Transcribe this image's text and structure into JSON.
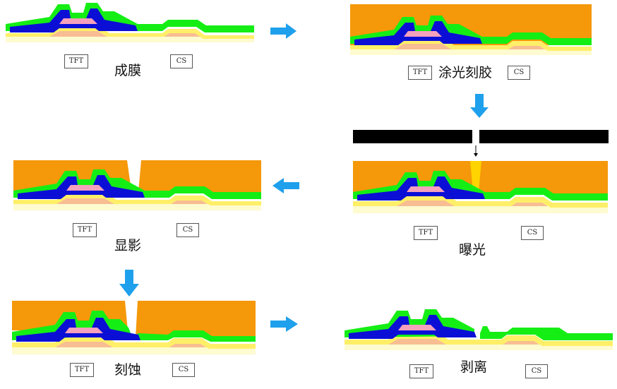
{
  "colors": {
    "resist": "#f5980a",
    "green": "#15ee15",
    "blue": "#0b0fd6",
    "pink": "#f5a0bd",
    "yellow": "#ffef68",
    "cream": "#fdfbcf",
    "peach": "#f8bd92",
    "arrow": "#1fa0ec",
    "mask": "#000000",
    "exposed": "#ffd400"
  },
  "steps": [
    {
      "id": "deposit",
      "caption": "成膜",
      "tft_label": "TFT",
      "cs_label": "CS"
    },
    {
      "id": "coat",
      "caption": "涂光刻胶",
      "tft_label": "TFT",
      "cs_label": "CS"
    },
    {
      "id": "develop",
      "caption": "显影",
      "tft_label": "TFT",
      "cs_label": "CS"
    },
    {
      "id": "expose",
      "caption": "曝光",
      "tft_label": "TFT",
      "cs_label": "CS"
    },
    {
      "id": "etch",
      "caption": "刻蚀",
      "tft_label": "TFT",
      "cs_label": "CS"
    },
    {
      "id": "strip",
      "caption": "剥离",
      "tft_label": "TFT",
      "cs_label": "CS"
    }
  ]
}
